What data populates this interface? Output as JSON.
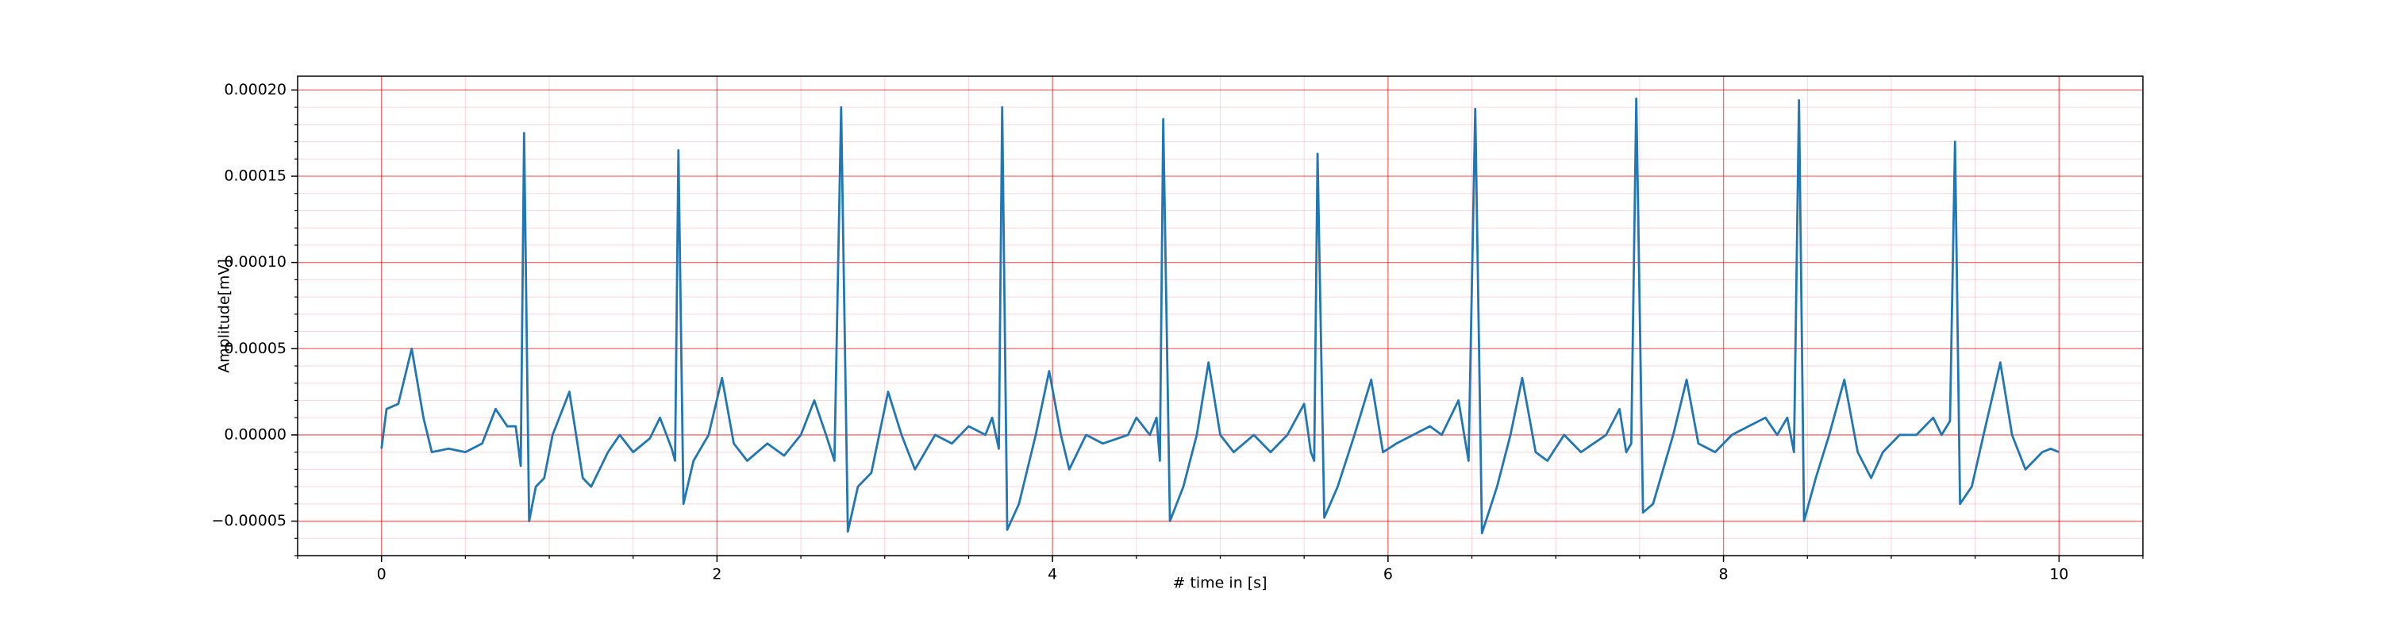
{
  "chart_data": {
    "type": "line",
    "xlabel": "# time in [s]",
    "ylabel": "Amplitude[mV]",
    "xlim": [
      -0.5,
      10.5
    ],
    "ylim": [
      -7e-05,
      0.000208
    ],
    "xticks": [
      0,
      2,
      4,
      6,
      8,
      10
    ],
    "yticks": [
      {
        "value": -5e-05,
        "label": "−0.00005"
      },
      {
        "value": 0,
        "label": "0.00000"
      },
      {
        "value": 5e-05,
        "label": "0.00005"
      },
      {
        "value": 0.0001,
        "label": "0.00010"
      },
      {
        "value": 0.00015,
        "label": "0.00015"
      },
      {
        "value": 0.0002,
        "label": "0.00020"
      }
    ],
    "xminorticks": [
      -0.5,
      0.5,
      1,
      1.5,
      2.5,
      3,
      3.5,
      4.5,
      5,
      5.5,
      6.5,
      7,
      7.5,
      8.5,
      9,
      9.5,
      10.5
    ],
    "yminorticks": [
      -7e-05,
      -6e-05,
      -4e-05,
      -3e-05,
      -2e-05,
      -1e-05,
      1e-05,
      2e-05,
      3e-05,
      4e-05,
      6e-05,
      7e-05,
      8e-05,
      9e-05,
      0.00011,
      0.00012,
      0.00013,
      0.00014,
      0.00016,
      0.00017,
      0.00018,
      0.00019
    ],
    "grid": true,
    "grid_color": "#ff0000",
    "minor_grid_color": "#ffb6c1",
    "series": [
      {
        "color": "#1f77b4",
        "x": [
          0,
          0.03,
          0.1,
          0.18,
          0.25,
          0.3,
          0.4,
          0.5,
          0.6,
          0.68,
          0.75,
          0.8,
          0.83,
          0.85,
          0.88,
          0.92,
          0.97,
          1.02,
          1.12,
          1.2,
          1.25,
          1.35,
          1.42,
          1.5,
          1.6,
          1.66,
          1.73,
          1.75,
          1.77,
          1.8,
          1.86,
          1.95,
          2.03,
          2.1,
          2.18,
          2.3,
          2.4,
          2.5,
          2.58,
          2.65,
          2.7,
          2.74,
          2.78,
          2.84,
          2.92,
          3.02,
          3.1,
          3.18,
          3.3,
          3.4,
          3.5,
          3.6,
          3.64,
          3.68,
          3.7,
          3.73,
          3.8,
          3.9,
          3.98,
          4.05,
          4.1,
          4.2,
          4.3,
          4.45,
          4.5,
          4.58,
          4.62,
          4.64,
          4.66,
          4.7,
          4.78,
          4.86,
          4.93,
          5.0,
          5.08,
          5.2,
          5.3,
          5.4,
          5.5,
          5.54,
          5.56,
          5.58,
          5.62,
          5.7,
          5.8,
          5.9,
          5.97,
          6.05,
          6.15,
          6.25,
          6.32,
          6.42,
          6.48,
          6.52,
          6.56,
          6.65,
          6.73,
          6.8,
          6.88,
          6.95,
          7.05,
          7.15,
          7.3,
          7.38,
          7.42,
          7.45,
          7.48,
          7.52,
          7.58,
          7.7,
          7.78,
          7.85,
          7.95,
          8.05,
          8.15,
          8.25,
          8.32,
          8.38,
          8.42,
          8.45,
          8.48,
          8.55,
          8.63,
          8.72,
          8.8,
          8.88,
          8.95,
          9.05,
          9.15,
          9.25,
          9.3,
          9.35,
          9.38,
          9.41,
          9.48,
          9.55,
          9.65,
          9.72,
          9.8,
          9.9,
          9.95,
          10.0
        ],
        "values": [
          -8e-06,
          1.5e-05,
          1.8e-05,
          5e-05,
          1e-05,
          -1e-05,
          -8e-06,
          -1e-05,
          -5e-06,
          1.5e-05,
          5e-06,
          5e-06,
          -1.8e-05,
          0.000175,
          -5e-05,
          -3e-05,
          -2.5e-05,
          0.0,
          2.5e-05,
          -2.5e-05,
          -3e-05,
          -1e-05,
          0.0,
          -1e-05,
          -2e-06,
          1e-05,
          -8e-06,
          -1.5e-05,
          0.000165,
          -4e-05,
          -1.5e-05,
          0.0,
          3.3e-05,
          -5e-06,
          -1.5e-05,
          -5e-06,
          -1.2e-05,
          0.0,
          2e-05,
          0.0,
          -1.5e-05,
          0.00019,
          -5.6e-05,
          -3e-05,
          -2.2e-05,
          2.5e-05,
          0.0,
          -2e-05,
          0.0,
          -5e-06,
          5e-06,
          0.0,
          1e-05,
          -8e-06,
          0.00019,
          -5.5e-05,
          -4e-05,
          0.0,
          3.7e-05,
          0.0,
          -2e-05,
          0.0,
          -5e-06,
          0.0,
          1e-05,
          0.0,
          1e-05,
          -1.5e-05,
          0.000183,
          -5e-05,
          -3e-05,
          0.0,
          4.2e-05,
          0.0,
          -1e-05,
          0.0,
          -1e-05,
          0.0,
          1.8e-05,
          -1e-05,
          -1.5e-05,
          0.000163,
          -4.8e-05,
          -3e-05,
          0.0,
          3.2e-05,
          -1e-05,
          -5e-06,
          0.0,
          5e-06,
          0.0,
          2e-05,
          -1.5e-05,
          0.000189,
          -5.7e-05,
          -3e-05,
          0.0,
          3.3e-05,
          -1e-05,
          -1.5e-05,
          0.0,
          -1e-05,
          0.0,
          1.5e-05,
          -1e-05,
          -5e-06,
          0.000195,
          -4.5e-05,
          -4e-05,
          0.0,
          3.2e-05,
          -5e-06,
          -1e-05,
          0.0,
          5e-06,
          1e-05,
          0.0,
          1e-05,
          -1e-05,
          0.000194,
          -5e-05,
          -2.5e-05,
          0.0,
          3.2e-05,
          -1e-05,
          -2.5e-05,
          -1e-05,
          0.0,
          0.0,
          1e-05,
          0.0,
          8e-06,
          0.00017,
          -4e-05,
          -3e-05,
          0.0,
          4.2e-05,
          0.0,
          -2e-05,
          -1e-05,
          -8e-06,
          -1e-05
        ]
      }
    ]
  }
}
